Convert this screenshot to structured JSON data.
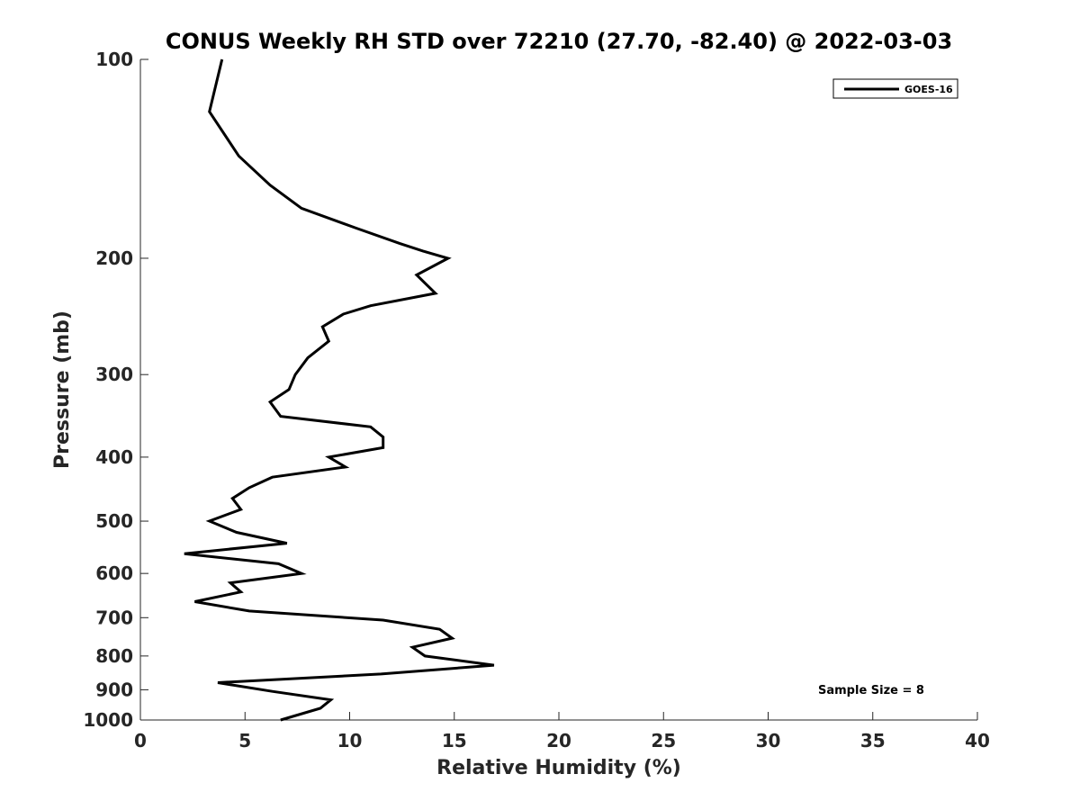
{
  "chart_data": {
    "type": "line",
    "title": "CONUS Weekly RH STD over 72210 (27.70, -82.40) @ 2022-03-03",
    "xlabel": "Relative Humidity (%)",
    "ylabel": "Pressure (mb)",
    "xlim": [
      0,
      40
    ],
    "ylim": [
      100,
      1000
    ],
    "y_scale": "log",
    "y_reversed": true,
    "x_ticks": [
      0,
      5,
      10,
      15,
      20,
      25,
      30,
      35,
      40
    ],
    "y_ticks": [
      100,
      200,
      300,
      400,
      500,
      600,
      700,
      800,
      900,
      1000
    ],
    "grid": false,
    "legend_position": "top-right",
    "annotation": "Sample Size = 8",
    "series": [
      {
        "name": "GOES-16",
        "color": "#000000",
        "points": [
          [
            3.9,
            100
          ],
          [
            3.3,
            120
          ],
          [
            4.7,
            140
          ],
          [
            6.2,
            155
          ],
          [
            7.7,
            168
          ],
          [
            10.3,
            180
          ],
          [
            12.4,
            190
          ],
          [
            13.5,
            195
          ],
          [
            14.7,
            200
          ],
          [
            13.2,
            212
          ],
          [
            14.1,
            226
          ],
          [
            11.0,
            236
          ],
          [
            9.7,
            243
          ],
          [
            8.7,
            254
          ],
          [
            9.0,
            267
          ],
          [
            8.0,
            283
          ],
          [
            7.4,
            300
          ],
          [
            7.1,
            316
          ],
          [
            6.2,
            330
          ],
          [
            6.7,
            347
          ],
          [
            11.0,
            360
          ],
          [
            11.6,
            373
          ],
          [
            11.6,
            387
          ],
          [
            9.0,
            400
          ],
          [
            9.8,
            414
          ],
          [
            6.3,
            429
          ],
          [
            5.2,
            445
          ],
          [
            4.4,
            462
          ],
          [
            4.8,
            480
          ],
          [
            3.3,
            500
          ],
          [
            4.6,
            520
          ],
          [
            7.0,
            540
          ],
          [
            2.1,
            560
          ],
          [
            6.6,
            580
          ],
          [
            7.7,
            600
          ],
          [
            4.3,
            620
          ],
          [
            4.8,
            640
          ],
          [
            2.6,
            662
          ],
          [
            5.2,
            684
          ],
          [
            11.6,
            706
          ],
          [
            14.3,
            729
          ],
          [
            14.9,
            752
          ],
          [
            13.0,
            776
          ],
          [
            13.6,
            800
          ],
          [
            16.9,
            826
          ],
          [
            11.5,
            852
          ],
          [
            3.7,
            878
          ],
          [
            6.3,
            905
          ],
          [
            9.1,
            932
          ],
          [
            8.6,
            960
          ],
          [
            6.7,
            1000
          ]
        ]
      }
    ]
  },
  "colors": {
    "line": "#000000",
    "axis": "#262626",
    "background": "#ffffff"
  }
}
